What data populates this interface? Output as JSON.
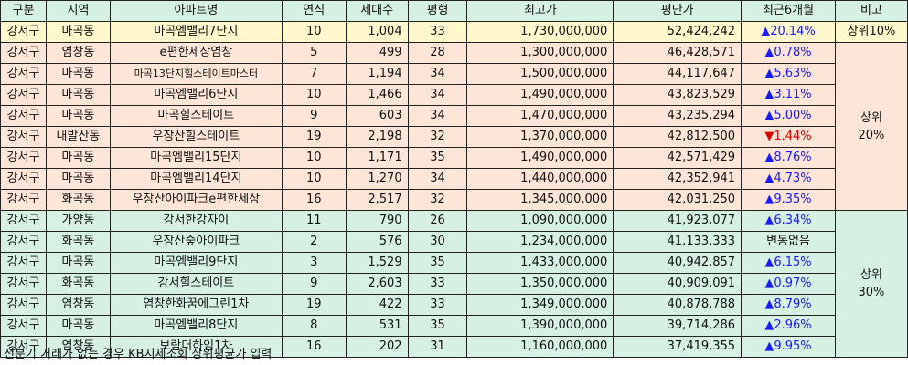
{
  "table": {
    "headers": [
      "구분",
      "지역",
      "아파트명",
      "연식",
      "세대수",
      "평형",
      "최고가",
      "평단가",
      "최근6개월",
      "비고"
    ],
    "rows": [
      {
        "gu": "강서구",
        "dong": "마곡동",
        "apt": "마곡엠밸리7단지",
        "age": "10",
        "units": "1,004",
        "pyeong": "33",
        "max_price": "1,730,000,000",
        "per_pyeong": "52,424,242",
        "change": "▲20.14%",
        "dir": "up"
      },
      {
        "gu": "강서구",
        "dong": "염창동",
        "apt": "e편한세상염창",
        "age": "5",
        "units": "499",
        "pyeong": "28",
        "max_price": "1,300,000,000",
        "per_pyeong": "46,428,571",
        "change": "▲0.78%",
        "dir": "up"
      },
      {
        "gu": "강서구",
        "dong": "마곡동",
        "apt": "마곡13단지힐스테이트마스터",
        "age": "7",
        "units": "1,194",
        "pyeong": "34",
        "max_price": "1,500,000,000",
        "per_pyeong": "44,117,647",
        "change": "▲5.63%",
        "dir": "up"
      },
      {
        "gu": "강서구",
        "dong": "마곡동",
        "apt": "마곡엠밸리6단지",
        "age": "10",
        "units": "1,466",
        "pyeong": "34",
        "max_price": "1,490,000,000",
        "per_pyeong": "43,823,529",
        "change": "▲3.11%",
        "dir": "up"
      },
      {
        "gu": "강서구",
        "dong": "마곡동",
        "apt": "마곡힐스테이트",
        "age": "9",
        "units": "603",
        "pyeong": "34",
        "max_price": "1,470,000,000",
        "per_pyeong": "43,235,294",
        "change": "▲5.00%",
        "dir": "up"
      },
      {
        "gu": "강서구",
        "dong": "내발산동",
        "apt": "우장산힐스테이트",
        "age": "19",
        "units": "2,198",
        "pyeong": "32",
        "max_price": "1,370,000,000",
        "per_pyeong": "42,812,500",
        "change": "▼1.44%",
        "dir": "down"
      },
      {
        "gu": "강서구",
        "dong": "마곡동",
        "apt": "마곡엠밸리15단지",
        "age": "10",
        "units": "1,171",
        "pyeong": "35",
        "max_price": "1,490,000,000",
        "per_pyeong": "42,571,429",
        "change": "▲8.76%",
        "dir": "up"
      },
      {
        "gu": "강서구",
        "dong": "마곡동",
        "apt": "마곡엠밸리14단지",
        "age": "10",
        "units": "1,270",
        "pyeong": "34",
        "max_price": "1,440,000,000",
        "per_pyeong": "42,352,941",
        "change": "▲4.73%",
        "dir": "up"
      },
      {
        "gu": "강서구",
        "dong": "화곡동",
        "apt": "우장산아이파크e편한세상",
        "age": "16",
        "units": "2,517",
        "pyeong": "32",
        "max_price": "1,345,000,000",
        "per_pyeong": "42,031,250",
        "change": "▲9.35%",
        "dir": "up"
      },
      {
        "gu": "강서구",
        "dong": "가양동",
        "apt": "강서한강자이",
        "age": "11",
        "units": "790",
        "pyeong": "26",
        "max_price": "1,090,000,000",
        "per_pyeong": "41,923,077",
        "change": "▲6.34%",
        "dir": "up"
      },
      {
        "gu": "강서구",
        "dong": "화곡동",
        "apt": "우장산숲아이파크",
        "age": "2",
        "units": "576",
        "pyeong": "30",
        "max_price": "1,234,000,000",
        "per_pyeong": "41,133,333",
        "change": "변동없음",
        "dir": "flat"
      },
      {
        "gu": "강서구",
        "dong": "마곡동",
        "apt": "마곡엠밸리9단지",
        "age": "3",
        "units": "1,529",
        "pyeong": "35",
        "max_price": "1,433,000,000",
        "per_pyeong": "40,942,857",
        "change": "▲6.15%",
        "dir": "up"
      },
      {
        "gu": "강서구",
        "dong": "화곡동",
        "apt": "강서힐스테이트",
        "age": "9",
        "units": "2,603",
        "pyeong": "33",
        "max_price": "1,350,000,000",
        "per_pyeong": "40,909,091",
        "change": "▲0.97%",
        "dir": "up"
      },
      {
        "gu": "강서구",
        "dong": "염창동",
        "apt": "염창한화꿈에그린1차",
        "age": "19",
        "units": "422",
        "pyeong": "33",
        "max_price": "1,349,000,000",
        "per_pyeong": "40,878,788",
        "change": "▲8.79%",
        "dir": "up"
      },
      {
        "gu": "강서구",
        "dong": "마곡동",
        "apt": "마곡엠밸리8단지",
        "age": "8",
        "units": "531",
        "pyeong": "35",
        "max_price": "1,390,000,000",
        "per_pyeong": "39,714,286",
        "change": "▲2.96%",
        "dir": "up"
      },
      {
        "gu": "강서구",
        "dong": "염창동",
        "apt": "보람더하임1차",
        "age": "16",
        "units": "202",
        "pyeong": "31",
        "max_price": "1,160,000,000",
        "per_pyeong": "37,419,355",
        "change": "▲9.95%",
        "dir": "up"
      }
    ],
    "notes": {
      "top": "상위10%",
      "top20": "상위\n20%",
      "top30": "상위\n30%"
    }
  },
  "footnote": "전분기 거래가 없는 경우 KB시세조회 상위평균가 입력",
  "colors": {
    "header_bg": "#d6f0e4",
    "top_row_bg": "#fff8cc",
    "group20_bg": "#fde6d8",
    "group30_bg": "#d6f0e4",
    "up": "#1a1aff",
    "down": "#e00000"
  }
}
